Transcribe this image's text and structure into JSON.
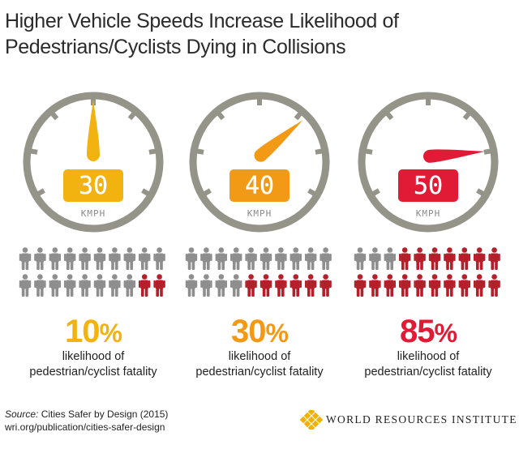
{
  "title_line1": "Higher Vehicle Speeds Increase Likelihood of",
  "title_line2": "Pedestrians/Cyclists Dying in Collisions",
  "unit": "KMPH",
  "colors": {
    "gray": "#949489",
    "yellow": "#f2b20f",
    "orange": "#f29a15",
    "red": "#e11b35",
    "person_red": "#b3202a",
    "person_gray": "#8e8e8e",
    "logo_gold": "#f0b100"
  },
  "panels": [
    {
      "speed": "30",
      "percent_number": "10",
      "percent_sign": "%",
      "fatal_count": 2,
      "total": 20,
      "accent": "#f2b20f",
      "pct_color": "#f2b20f",
      "needle_angle_deg": 0
    },
    {
      "speed": "40",
      "percent_number": "30",
      "percent_sign": "%",
      "fatal_count": 6,
      "total": 20,
      "accent": "#f29a15",
      "pct_color": "#f29a15",
      "needle_angle_deg": 50
    },
    {
      "speed": "50",
      "percent_number": "85",
      "percent_sign": "%",
      "fatal_count": 17,
      "total": 20,
      "accent": "#e11b35",
      "pct_color": "#e11b35",
      "needle_angle_deg": 85
    }
  ],
  "caption_line1": "likelihood of",
  "caption_line2": "pedestrian/cyclist fatality",
  "source_label": "Source:",
  "source_text": " Cities Safer by Design (2015)",
  "source_url": "wri.org/publication/cities-safer-design",
  "logo_text": "WORLD RESOURCES INSTITUTE"
}
